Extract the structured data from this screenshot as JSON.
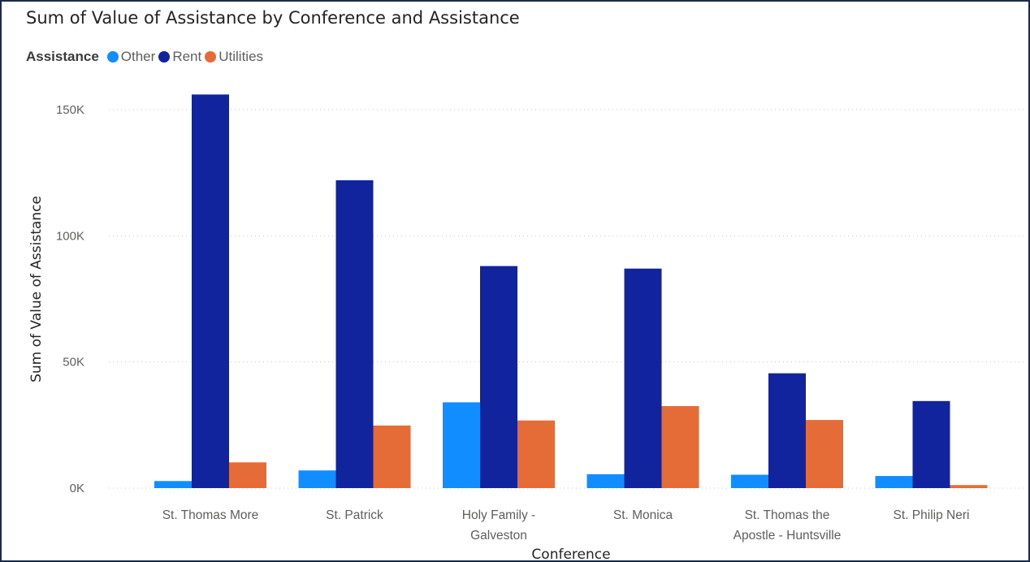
{
  "chart_data": {
    "type": "bar",
    "title": "Sum of Value of Assistance by Conference and Assistance",
    "legend_title": "Assistance",
    "legend_position": "top-left",
    "xlabel": "Conference",
    "ylabel": "Sum of Value of Assistance",
    "ylim": [
      0,
      160000
    ],
    "yticks": [
      0,
      50000,
      100000,
      150000
    ],
    "ytick_labels": [
      "0K",
      "50K",
      "100K",
      "150K"
    ],
    "grid": true,
    "categories": [
      [
        "St. Thomas More"
      ],
      [
        "St. Patrick"
      ],
      [
        "Holy Family -",
        "Galveston"
      ],
      [
        "St. Monica"
      ],
      [
        "St. Thomas the",
        "Apostle - Huntsville"
      ],
      [
        "St. Philip Neri"
      ]
    ],
    "series": [
      {
        "name": "Other",
        "color": "#118dff",
        "values": [
          2800,
          7000,
          34000,
          5500,
          5300,
          4800
        ]
      },
      {
        "name": "Rent",
        "color": "#12239e",
        "values": [
          156000,
          122000,
          88000,
          87000,
          45500,
          34500
        ]
      },
      {
        "name": "Utilities",
        "color": "#e66c37",
        "values": [
          10200,
          24800,
          26800,
          32500,
          27000,
          1200
        ]
      }
    ]
  }
}
